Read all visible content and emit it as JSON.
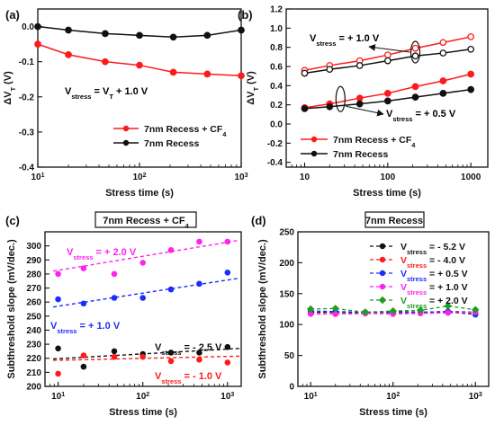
{
  "chart_data": [
    {
      "panel": "(a)",
      "type": "line",
      "xlabel": "Stress time (s)",
      "ylabel": "ΔVT (V)",
      "xscale": "log",
      "xlim": [
        10,
        1000
      ],
      "ylim": [
        -0.4,
        0.05
      ],
      "x_ticks": [
        10,
        100,
        1000
      ],
      "x_tick_labels": [
        "10",
        "10",
        "10"
      ],
      "x_tick_sup": [
        "1",
        "2",
        "3"
      ],
      "y_ticks": [
        -0.4,
        -0.3,
        -0.2,
        -0.1,
        0.0
      ],
      "y_tick_labels": [
        "-0.4",
        "-0.3",
        "-0.2",
        "-0.1",
        "0.0"
      ],
      "annotations": [
        {
          "text_main": "V",
          "text_sub": "stress",
          "text_rest": " = V",
          "text_sub2": "T",
          "text_rest2": " + 1.0 V",
          "color": "#000000"
        }
      ],
      "legend": [
        {
          "label": "7nm Recess + CF",
          "sub": "4",
          "color": "#ff1a1a"
        },
        {
          "label": "7nm Recess",
          "sub": "",
          "color": "#111111"
        }
      ],
      "series": [
        {
          "name": "7nm Recess + CF4",
          "color": "#ff1a1a",
          "marker": "filled",
          "line": "solid",
          "x": [
            10,
            20,
            46,
            100,
            215,
            464,
            1000
          ],
          "y": [
            -0.05,
            -0.08,
            -0.1,
            -0.11,
            -0.13,
            -0.135,
            -0.14
          ]
        },
        {
          "name": "7nm Recess",
          "color": "#111111",
          "marker": "filled",
          "line": "solid",
          "x": [
            10,
            20,
            46,
            100,
            215,
            464,
            1000
          ],
          "y": [
            0.0,
            -0.01,
            -0.02,
            -0.025,
            -0.03,
            -0.025,
            -0.01
          ]
        }
      ]
    },
    {
      "panel": "(b)",
      "type": "line",
      "xlabel": "Stress time (s)",
      "ylabel": "ΔVT (V)",
      "xscale": "log",
      "xlim": [
        6,
        1600
      ],
      "ylim": [
        -0.45,
        1.2
      ],
      "x_ticks": [
        10,
        100,
        1000
      ],
      "x_tick_labels": [
        "10",
        "100",
        "1000"
      ],
      "y_ticks": [
        -0.4,
        -0.2,
        0.0,
        0.2,
        0.4,
        0.6,
        0.8,
        1.0,
        1.2
      ],
      "y_tick_labels": [
        "-0.4",
        "-0.2",
        "0.0",
        "0.2",
        "0.4",
        "0.6",
        "0.8",
        "1.0",
        "1.2"
      ],
      "annotations": [
        {
          "text_main": "V",
          "text_sub": "stress",
          "text_rest": " = + 1.0 V",
          "color": "#000000"
        },
        {
          "text_main": "V",
          "text_sub": "stress",
          "text_rest": " = + 0.5 V",
          "color": "#000000"
        }
      ],
      "legend": [
        {
          "label": "7nm Recess + CF",
          "sub": "4",
          "color": "#ff1a1a"
        },
        {
          "label": "7nm Recess",
          "sub": "",
          "color": "#111111"
        }
      ],
      "series": [
        {
          "name": "7nm Recess + CF4 (+1.0 V)",
          "color": "#ff1a1a",
          "marker": "open",
          "line": "solid",
          "x": [
            10,
            20,
            46,
            100,
            215,
            464,
            1000
          ],
          "y": [
            0.56,
            0.61,
            0.66,
            0.72,
            0.79,
            0.85,
            0.91
          ]
        },
        {
          "name": "7nm Recess (+1.0 V)",
          "color": "#111111",
          "marker": "open",
          "line": "solid",
          "x": [
            10,
            20,
            46,
            100,
            215,
            464,
            1000
          ],
          "y": [
            0.53,
            0.57,
            0.61,
            0.66,
            0.71,
            0.74,
            0.78
          ]
        },
        {
          "name": "7nm Recess + CF4 (+0.5 V)",
          "color": "#ff1a1a",
          "marker": "filled",
          "line": "solid",
          "x": [
            10,
            20,
            46,
            100,
            215,
            464,
            1000
          ],
          "y": [
            0.17,
            0.21,
            0.27,
            0.32,
            0.39,
            0.45,
            0.52
          ]
        },
        {
          "name": "7nm Recess (+0.5 V)",
          "color": "#111111",
          "marker": "filled",
          "line": "solid",
          "x": [
            10,
            20,
            46,
            100,
            215,
            464,
            1000
          ],
          "y": [
            0.16,
            0.18,
            0.21,
            0.24,
            0.28,
            0.32,
            0.36
          ]
        }
      ]
    },
    {
      "panel": "(c)",
      "type": "scatter",
      "title": "7nm Recess + CF",
      "title_sub": "4",
      "xlabel": "Stress time (s)",
      "ylabel": "Subthreshold slope (mV/dec.)",
      "xscale": "log",
      "xlim": [
        7,
        1450
      ],
      "ylim": [
        200,
        310
      ],
      "x_ticks": [
        10,
        100,
        1000
      ],
      "x_tick_labels": [
        "10",
        "10",
        "10"
      ],
      "x_tick_sup": [
        "1",
        "2",
        "3"
      ],
      "y_ticks": [
        200,
        210,
        220,
        230,
        240,
        250,
        260,
        270,
        280,
        290,
        300
      ],
      "y_tick_labels": [
        "200",
        "210",
        "220",
        "230",
        "240",
        "250",
        "260",
        "270",
        "280",
        "290",
        "300"
      ],
      "annotations": [
        {
          "text_main": "V",
          "text_sub": "stress",
          "text_rest": " = + 2.0 V",
          "color": "#ff22ee"
        },
        {
          "text_main": "V",
          "text_sub": "stress",
          "text_rest": " = + 1.0 V",
          "color": "#1a2cff"
        },
        {
          "text_main": "V",
          "text_sub": "stress",
          "text_rest": " = - 2.5 V",
          "color": "#111111"
        },
        {
          "text_main": "V",
          "text_sub": "stress",
          "text_rest": " = - 1.0 V",
          "color": "#ff1a1a"
        }
      ],
      "series": [
        {
          "name": "+2.0 V",
          "color": "#ff22ee",
          "x": [
            10,
            20,
            46,
            100,
            215,
            464,
            1000
          ],
          "y": [
            280,
            284,
            280,
            288,
            297,
            303,
            303
          ],
          "fit": [
            282,
            304
          ]
        },
        {
          "name": "+1.0 V",
          "color": "#1a2cff",
          "x": [
            10,
            20,
            46,
            100,
            215,
            464,
            1000
          ],
          "y": [
            262,
            259,
            263,
            263,
            269,
            273,
            281
          ],
          "fit": [
            256.5,
            277
          ]
        },
        {
          "name": "-2.5 V",
          "color": "#111111",
          "x": [
            10,
            20,
            46,
            100,
            215,
            464,
            1000
          ],
          "y": [
            227,
            214,
            225,
            223,
            224,
            224,
            228
          ],
          "fit": [
            219.5,
            227
          ]
        },
        {
          "name": "-1.0 V",
          "color": "#ff1a1a",
          "x": [
            10,
            20,
            46,
            100,
            215,
            464,
            1000
          ],
          "y": [
            209,
            222,
            221,
            221,
            218,
            219,
            217
          ],
          "fit": [
            218.5,
            221.5
          ]
        }
      ]
    },
    {
      "panel": "(d)",
      "type": "line",
      "title": "7nm Recess",
      "xlabel": "Stress time (s)",
      "ylabel": "Subthreshold slope (mV/dec.)",
      "xscale": "log",
      "xlim": [
        7,
        1450
      ],
      "ylim": [
        0,
        250
      ],
      "x_ticks": [
        10,
        100,
        1000
      ],
      "x_tick_labels": [
        "10",
        "10",
        "10"
      ],
      "x_tick_sup": [
        "1",
        "2",
        "3"
      ],
      "y_ticks": [
        0,
        50,
        100,
        150,
        200,
        250
      ],
      "y_tick_labels": [
        "0",
        "50",
        "100",
        "150",
        "200",
        "250"
      ],
      "legend": [
        {
          "label_main": "V",
          "label_sub": "stress",
          "label_rest": " = - 5.2 V",
          "color": "#111111",
          "marker": "circle"
        },
        {
          "label_main": "V",
          "label_sub": "stress",
          "label_rest": " = - 4.0 V",
          "color": "#ff1a1a",
          "marker": "circle"
        },
        {
          "label_main": "V",
          "label_sub": "stress",
          "label_rest": " = + 0.5 V",
          "color": "#1a2cff",
          "marker": "circle"
        },
        {
          "label_main": "V",
          "label_sub": "stress",
          "label_rest": " = + 1.0 V",
          "color": "#ff22ee",
          "marker": "circle"
        },
        {
          "label_main": "V",
          "label_sub": "stress",
          "label_rest": " = + 2.0 V",
          "color": "#1e9e1e",
          "marker": "diamond"
        }
      ],
      "series": [
        {
          "name": "-5.2 V",
          "color": "#111111",
          "marker": "circle",
          "x": [
            10,
            20,
            46,
            100,
            215,
            464,
            1000
          ],
          "y": [
            120,
            120,
            119,
            121,
            120,
            121,
            120
          ]
        },
        {
          "name": "-4.0 V",
          "color": "#ff1a1a",
          "marker": "circle",
          "x": [
            10,
            20,
            46,
            100,
            215,
            464,
            1000
          ],
          "y": [
            118,
            117,
            118,
            118,
            119,
            119,
            118
          ]
        },
        {
          "name": "+0.5 V",
          "color": "#1a2cff",
          "marker": "circle",
          "x": [
            10,
            20,
            46,
            100,
            215,
            464,
            1000
          ],
          "y": [
            122,
            121,
            120,
            120,
            120,
            121,
            116
          ]
        },
        {
          "name": "+1.0 V",
          "color": "#ff22ee",
          "marker": "circle",
          "x": [
            10,
            20,
            46,
            100,
            215,
            464,
            1000
          ],
          "y": [
            117,
            117,
            118,
            117,
            118,
            119,
            120
          ]
        },
        {
          "name": "+2.0 V",
          "color": "#1e9e1e",
          "marker": "diamond",
          "x": [
            10,
            20,
            46,
            100,
            215,
            464,
            1000
          ],
          "y": [
            125,
            126,
            120,
            122,
            123,
            130,
            124
          ]
        }
      ]
    }
  ]
}
